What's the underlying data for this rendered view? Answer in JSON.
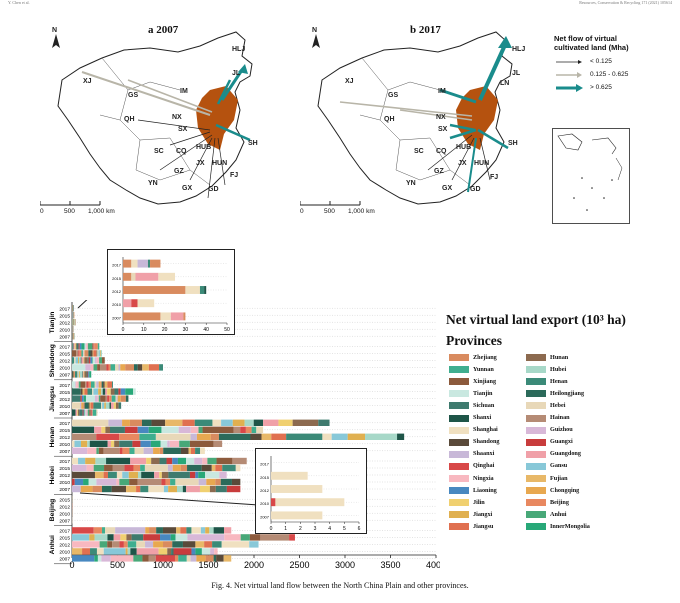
{
  "header": {
    "left": "Y. Chen et al.",
    "right": "Resources, Conservation & Recycling 171 (2021) 105614"
  },
  "maps": {
    "a": {
      "title": "a 2007"
    },
    "b": {
      "title": "b 2017"
    },
    "province_labels": [
      "HLJ",
      "JL",
      "XJ",
      "GS",
      "IM",
      "QH",
      "NX",
      "SX",
      "SC",
      "CQ",
      "HUB",
      "JX",
      "HUN",
      "FJ",
      "GZ",
      "GX",
      "YN",
      "GD",
      "SH",
      "LN"
    ],
    "scale_labels": [
      "0",
      "500",
      "1,000 km"
    ],
    "north": "N"
  },
  "flow_legend": {
    "title_lines": [
      "Net flow of virtual",
      "cultivated land (Mha)"
    ],
    "items": [
      {
        "label": "< 0.125",
        "color": "#222222"
      },
      {
        "label": "0.125 - 0.625",
        "color": "#b8b5a8"
      },
      {
        "label": "> 0.625",
        "color": "#1a8c8c"
      }
    ]
  },
  "bar_legend": {
    "title": "Net virtual land export (10³ ha)",
    "subtitle": "Provinces",
    "provinces": [
      {
        "name": "Zhejiang",
        "color": "#d98b5f"
      },
      {
        "name": "Hunan",
        "color": "#8c6a4f"
      },
      {
        "name": "Yunnan",
        "color": "#3fae8f"
      },
      {
        "name": "Hubei",
        "color": "#a7d8c8"
      },
      {
        "name": "Xinjiang",
        "color": "#8c5a3c"
      },
      {
        "name": "Henan",
        "color": "#3b8a78"
      },
      {
        "name": "Tianjin",
        "color": "#c9e8e0"
      },
      {
        "name": "Heilongjiang",
        "color": "#2b6a5a"
      },
      {
        "name": "Sichuan",
        "color": "#3e7a6e"
      },
      {
        "name": "Hebei",
        "color": "#e8d8b8"
      },
      {
        "name": "Shanxi",
        "color": "#1e5548"
      },
      {
        "name": "Hainan",
        "color": "#b58b75"
      },
      {
        "name": "Shanghai",
        "color": "#f0e0c0"
      },
      {
        "name": "Guizhou",
        "color": "#d8b8d8"
      },
      {
        "name": "Shandong",
        "color": "#5a4a3a"
      },
      {
        "name": "Guangxi",
        "color": "#c83c3c"
      },
      {
        "name": "Shaanxi",
        "color": "#c8b8d8"
      },
      {
        "name": "Guangdong",
        "color": "#f0a0a8"
      },
      {
        "name": "Qinghai",
        "color": "#d84848"
      },
      {
        "name": "Gansu",
        "color": "#88c8d8"
      },
      {
        "name": "Ningxia",
        "color": "#f8b8c0"
      },
      {
        "name": "Fujian",
        "color": "#e8b868"
      },
      {
        "name": "Liaoning",
        "color": "#4888c0"
      },
      {
        "name": "Chongqing",
        "color": "#e8a850"
      },
      {
        "name": "Jilin",
        "color": "#f0d070"
      },
      {
        "name": "Beijing",
        "color": "#e88860"
      },
      {
        "name": "Jiangxi",
        "color": "#e0b050"
      },
      {
        "name": "Anhui",
        "color": "#48a878"
      },
      {
        "name": "Jiangsu",
        "color": "#e07050"
      },
      {
        "name": "InnerMongolia",
        "color": "#28a878"
      }
    ]
  },
  "chart_data": {
    "type": "bar",
    "orientation": "horizontal",
    "stacked": true,
    "xlim": [
      0,
      4000
    ],
    "xticks": [
      "0",
      "500",
      "1000",
      "1500",
      "2000",
      "2500",
      "3000",
      "3500",
      "4000"
    ],
    "groups": [
      {
        "name": "Tianjin",
        "years": [
          "2017",
          "2015",
          "2012",
          "2010",
          "2007"
        ],
        "totals": [
          18,
          25,
          40,
          15,
          30
        ]
      },
      {
        "name": "Shandong",
        "years": [
          "2017",
          "2015",
          "2012",
          "2010",
          "2007"
        ],
        "totals": [
          300,
          330,
          360,
          1000,
          220
        ]
      },
      {
        "name": "Jiangsu",
        "years": [
          "2017",
          "2015",
          "2012",
          "2010",
          "2007"
        ],
        "totals": [
          450,
          700,
          620,
          540,
          280
        ]
      },
      {
        "name": "Henan",
        "years": [
          "2017",
          "2015",
          "2012",
          "2010",
          "2007"
        ],
        "totals": [
          2830,
          2100,
          3650,
          1650,
          1460
        ]
      },
      {
        "name": "Hebei",
        "years": [
          "2017",
          "2015",
          "2012",
          "2010",
          "2007"
        ],
        "totals": [
          1920,
          1850,
          1700,
          1850,
          1850
        ]
      },
      {
        "name": "Beijing",
        "years": [
          "2015",
          "2012",
          "2010",
          "2007"
        ],
        "totals": [
          2.5,
          3.5,
          5,
          3.5
        ]
      },
      {
        "name": "Anhui",
        "years": [
          "2017",
          "2015",
          "2012",
          "2010",
          "2007"
        ],
        "totals": [
          1750,
          2450,
          2050,
          1600,
          1750
        ]
      }
    ],
    "inset_tianjin": {
      "years": [
        "2017",
        "2015",
        "2012",
        "2010",
        "2007"
      ],
      "values": [
        18,
        25,
        40,
        15,
        30
      ],
      "xticks": [
        "0",
        "10",
        "20",
        "30",
        "40",
        "50"
      ],
      "xlim": [
        0,
        50
      ]
    },
    "inset_beijing": {
      "years": [
        "2017",
        "2015",
        "2012",
        "2010",
        "2007"
      ],
      "values": [
        0,
        2.5,
        3.5,
        5,
        3.5
      ],
      "xticks": [
        "0",
        "1",
        "2",
        "3",
        "4",
        "5",
        "6"
      ],
      "xlim": [
        0,
        6
      ]
    }
  },
  "caption": "Fig. 4.  Net virtual land flow between the North China Plain and other provinces."
}
